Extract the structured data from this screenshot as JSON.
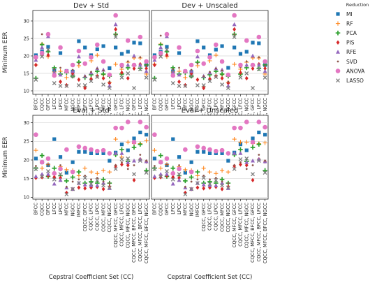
{
  "chart_data": {
    "type": "scatter",
    "y_label": "Minimum EER",
    "x_label": "Cepstral Coefficient Set (CC)",
    "categories": [
      "BFCC",
      "CQCC",
      "GFCC",
      "LFCC",
      "LPCC",
      "MFCC",
      "NGCC",
      "IMFCC",
      "CQCC, GFCC",
      "CQCC, LFCC",
      "CQCC, LPCC",
      "CQCC, MFCC",
      "CQCC, NGCC",
      "CQCC, MFCC, GFCC",
      "CQCC, MFCC, LFCC",
      "CQCC, MFCC, NGCC",
      "CQCC, MFCC, BFCC, GFCC",
      "CQCC, MFCC, BFCC, LFCC",
      "CQCC, MFCC, BFCC, NGCC"
    ],
    "legend": {
      "title": "Reduction",
      "placement": "right",
      "methods": [
        {
          "name": "MI",
          "marker": "square",
          "color": "#1f77b4"
        },
        {
          "name": "RF",
          "marker": "plus-thin",
          "color": "#ff7f0e"
        },
        {
          "name": "PCA",
          "marker": "plus",
          "color": "#2ca02c"
        },
        {
          "name": "PIS",
          "marker": "diamond",
          "color": "#d62728"
        },
        {
          "name": "RFE",
          "marker": "triangle",
          "color": "#9467bd"
        },
        {
          "name": "SVD",
          "marker": "dot",
          "color": "#8c564b"
        },
        {
          "name": "ANOVA",
          "marker": "circle",
          "color": "#e377c2"
        },
        {
          "name": "LASSO",
          "marker": "x",
          "color": "#7f7f7f"
        }
      ]
    },
    "panels": [
      {
        "title": "Dev + Std",
        "ylim": [
          9,
          33
        ],
        "yticks": [
          10,
          15,
          20,
          25,
          30
        ],
        "grid": true,
        "series": {
          "MI": [
            20.2,
            21.3,
            22.6,
            15.8,
            20.8,
            15.7,
            15.5,
            24.2,
            22.4,
            20.2,
            21.9,
            22.8,
            16.5,
            22.4,
            20.6,
            21.2,
            23.8,
            23.6,
            17.4
          ],
          "RF": [
            17.4,
            23.4,
            19.8,
            15.4,
            15.6,
            13.8,
            14.2,
            17.2,
            11.2,
            18.6,
            20.2,
            14.6,
            12.4,
            17.6,
            16.2,
            18.2,
            19.4,
            19.4,
            14.8
          ],
          "PCA": [
            13.6,
            23.2,
            21.2,
            16.6,
            14.8,
            15.2,
            14.2,
            18.2,
            13.8,
            14.6,
            15.6,
            14.8,
            14.2,
            26.2,
            14.8,
            16.6,
            17.2,
            16.4,
            17.4
          ],
          "PIS": [
            17.4,
            20.6,
            20.2,
            14.4,
            12.6,
            11.6,
            15.0,
            13.2,
            10.8,
            13.4,
            14.2,
            13.6,
            12.2,
            27.6,
            15.2,
            13.6,
            16.4,
            17.6,
            16.4
          ],
          "RFE": [
            18.8,
            22.4,
            25.6,
            15.2,
            14.6,
            15.6,
            15.6,
            19.8,
            14.2,
            15.2,
            16.4,
            16.0,
            11.4,
            29.0,
            17.2,
            17.4,
            20.0,
            17.4,
            15.6
          ],
          "SVD": [
            19.2,
            26.2,
            26.4,
            16.2,
            16.6,
            15.8,
            16.0,
            17.8,
            14.2,
            15.4,
            16.4,
            15.8,
            12.6,
            26.2,
            16.8,
            18.4,
            17.2,
            19.6,
            17.2
          ],
          "ANOVA": [
            19.6,
            20.8,
            26.2,
            14.4,
            22.4,
            15.6,
            17.4,
            21.4,
            17.8,
            19.6,
            23.2,
            18.4,
            14.6,
            31.6,
            17.4,
            24.4,
            17.4,
            25.4,
            18.4
          ],
          "LASSO": [
            13.2,
            19.8,
            21.8,
            12.2,
            11.4,
            11.4,
            14.2,
            11.6,
            11.6,
            12.8,
            14.0,
            11.8,
            10.8,
            25.4,
            13.8,
            15.0,
            10.8,
            16.2,
            13.8
          ]
        }
      },
      {
        "title": "Dev + Unscaled",
        "ylim": [
          9,
          33
        ],
        "yticks": [
          10,
          15,
          20,
          25,
          30
        ],
        "grid": true,
        "series": {
          "MI": [
            20.2,
            21.2,
            22.6,
            15.6,
            20.8,
            15.6,
            15.4,
            24.2,
            22.4,
            20.2,
            21.8,
            22.8,
            16.6,
            22.4,
            20.6,
            21.2,
            23.8,
            23.6,
            17.4
          ],
          "RF": [
            17.6,
            23.4,
            19.8,
            15.4,
            15.6,
            13.8,
            14.2,
            17.2,
            11.2,
            18.6,
            20.2,
            14.6,
            12.4,
            17.6,
            16.2,
            18.2,
            19.4,
            19.4,
            14.8
          ],
          "PCA": [
            13.6,
            23.2,
            21.2,
            16.6,
            14.8,
            15.2,
            14.2,
            18.2,
            13.8,
            14.6,
            15.6,
            14.8,
            14.2,
            26.2,
            14.8,
            16.6,
            17.2,
            16.4,
            17.4
          ],
          "PIS": [
            17.4,
            20.6,
            20.2,
            14.4,
            12.6,
            11.6,
            15.0,
            13.2,
            10.8,
            13.4,
            14.2,
            13.6,
            12.2,
            27.6,
            15.2,
            13.6,
            16.4,
            17.6,
            16.4
          ],
          "RFE": [
            18.8,
            22.4,
            25.6,
            15.2,
            14.6,
            15.6,
            15.6,
            19.8,
            14.2,
            15.2,
            16.4,
            16.0,
            11.4,
            29.0,
            17.2,
            17.4,
            20.0,
            17.4,
            15.6
          ],
          "SVD": [
            19.2,
            25.8,
            26.4,
            16.2,
            16.6,
            15.8,
            16.0,
            17.8,
            14.2,
            15.4,
            16.4,
            15.8,
            12.6,
            26.2,
            16.8,
            18.4,
            17.2,
            19.6,
            17.2
          ],
          "ANOVA": [
            19.6,
            20.8,
            26.2,
            14.4,
            22.4,
            15.6,
            17.4,
            21.4,
            17.8,
            19.6,
            23.2,
            18.4,
            14.6,
            31.6,
            17.4,
            24.4,
            17.4,
            25.4,
            18.4
          ],
          "LASSO": [
            13.2,
            19.8,
            21.8,
            12.2,
            11.4,
            11.4,
            14.2,
            11.6,
            11.6,
            12.8,
            14.0,
            11.8,
            10.8,
            25.4,
            13.8,
            15.0,
            10.8,
            16.2,
            13.8
          ]
        }
      },
      {
        "title": "Eval + Std",
        "ylim": [
          9.5,
          32
        ],
        "yticks": [
          10,
          15,
          20,
          25,
          30
        ],
        "grid": true,
        "series": {
          "MI": [
            20.4,
            19.4,
            18.6,
            25.6,
            20.8,
            16.6,
            19.4,
            22.2,
            22.2,
            21.8,
            21.8,
            21.8,
            19.8,
            22.0,
            24.2,
            22.6,
            25.8,
            27.4,
            26.8
          ],
          "RF": [
            22.6,
            17.8,
            18.8,
            16.2,
            18.2,
            17.4,
            17.2,
            15.8,
            17.8,
            16.8,
            16.4,
            17.2,
            16.8,
            25.6,
            20.8,
            24.8,
            24.4,
            24.4,
            25.2
          ],
          "PCA": [
            17.8,
            21.2,
            15.6,
            17.8,
            15.8,
            14.4,
            15.4,
            16.8,
            13.8,
            14.2,
            13.8,
            14.8,
            13.8,
            21.4,
            22.8,
            19.6,
            23.4,
            24.2,
            17.2
          ],
          "PIS": [
            15.2,
            15.4,
            15.8,
            15.4,
            15.2,
            11.2,
            12.2,
            12.6,
            12.4,
            12.6,
            12.8,
            12.2,
            12.8,
            18.4,
            18.8,
            18.6,
            14.6,
            20.2,
            19.6
          ],
          "RFE": [
            15.6,
            16.2,
            16.2,
            13.6,
            14.6,
            12.6,
            12.2,
            13.8,
            13.4,
            13.2,
            13.2,
            13.8,
            12.4,
            21.8,
            21.8,
            19.4,
            19.8,
            20.2,
            19.6
          ],
          "SVD": [
            18.4,
            15.6,
            18.8,
            16.8,
            18.6,
            12.8,
            14.2,
            14.8,
            15.8,
            14.8,
            15.2,
            14.2,
            13.8,
            18.6,
            19.4,
            17.6,
            18.6,
            21.4,
            19.8
          ],
          "ANOVA": [
            26.8,
            19.4,
            20.4,
            16.4,
            17.6,
            22.8,
            16.8,
            23.6,
            23.2,
            22.8,
            22.4,
            22.6,
            21.8,
            28.6,
            28.6,
            30.2,
            24.8,
            30.2,
            28.8
          ],
          "LASSO": [
            17.6,
            15.6,
            17.0,
            14.8,
            16.2,
            10.8,
            12.2,
            13.8,
            15.2,
            13.6,
            14.6,
            13.2,
            12.6,
            17.6,
            20.2,
            20.4,
            16.2,
            19.8,
            16.6
          ]
        }
      },
      {
        "title": "Eval + Unscaled",
        "ylim": [
          9.5,
          32
        ],
        "yticks": [
          10,
          15,
          20,
          25,
          30
        ],
        "grid": true,
        "series": {
          "MI": [
            20.4,
            19.4,
            18.6,
            25.6,
            20.8,
            16.6,
            19.4,
            22.2,
            22.2,
            21.8,
            21.8,
            21.8,
            19.8,
            22.0,
            24.2,
            22.6,
            25.8,
            27.4,
            26.8
          ],
          "RF": [
            22.6,
            17.8,
            18.8,
            16.2,
            18.2,
            17.4,
            17.2,
            15.8,
            17.8,
            16.8,
            16.4,
            17.2,
            16.8,
            25.6,
            24.8,
            24.8,
            24.4,
            24.4,
            24.6
          ],
          "PCA": [
            17.8,
            21.2,
            15.6,
            17.8,
            15.8,
            14.4,
            15.4,
            16.8,
            13.8,
            14.2,
            13.8,
            14.8,
            13.8,
            21.4,
            22.8,
            19.6,
            23.4,
            24.2,
            17.2
          ],
          "PIS": [
            15.2,
            15.4,
            15.8,
            15.4,
            15.2,
            11.2,
            12.2,
            12.6,
            12.4,
            12.6,
            12.8,
            12.2,
            12.8,
            18.4,
            18.8,
            18.6,
            14.6,
            20.2,
            19.6
          ],
          "RFE": [
            15.6,
            16.2,
            16.2,
            13.6,
            14.6,
            12.6,
            12.2,
            13.8,
            13.4,
            13.2,
            13.2,
            13.8,
            12.4,
            21.8,
            21.8,
            19.4,
            19.8,
            20.2,
            19.6
          ],
          "SVD": [
            18.4,
            15.6,
            18.8,
            16.8,
            18.6,
            12.8,
            14.2,
            14.8,
            15.8,
            14.8,
            15.2,
            14.2,
            13.8,
            18.6,
            19.4,
            17.6,
            18.6,
            21.4,
            19.8
          ],
          "ANOVA": [
            26.8,
            19.4,
            20.4,
            16.4,
            17.6,
            22.8,
            16.8,
            23.6,
            23.2,
            22.8,
            22.4,
            22.6,
            21.8,
            28.6,
            28.6,
            30.2,
            24.8,
            30.2,
            28.8
          ],
          "LASSO": [
            17.6,
            15.6,
            17.0,
            14.8,
            16.2,
            10.8,
            12.2,
            13.8,
            15.2,
            13.6,
            14.6,
            13.2,
            12.6,
            17.6,
            20.2,
            20.4,
            16.2,
            19.8,
            16.6
          ]
        }
      }
    ]
  }
}
